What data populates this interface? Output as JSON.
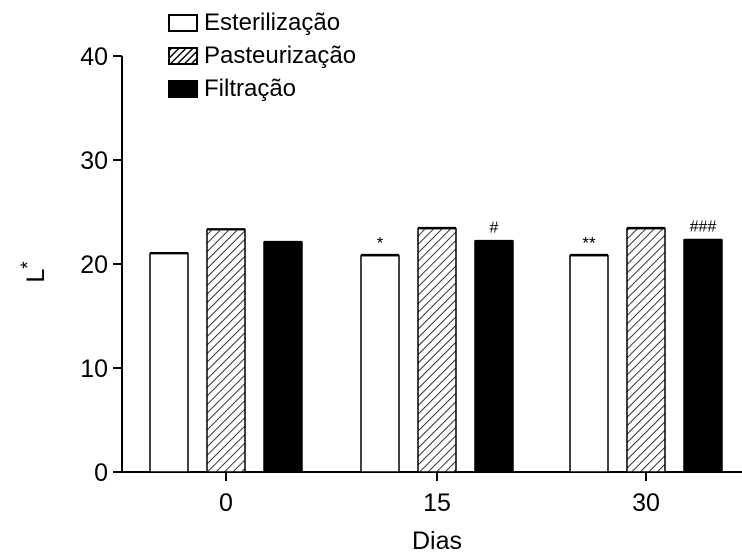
{
  "chart_data": {
    "type": "bar",
    "xlabel": "Dias",
    "ylabel": "L*",
    "categories": [
      "0",
      "15",
      "30"
    ],
    "ylim": [
      0,
      40
    ],
    "yticks": [
      "0",
      "10",
      "20",
      "30",
      "40"
    ],
    "series": [
      {
        "name": "Esterilização",
        "fill": "white",
        "values": [
          21.0,
          20.8,
          20.8
        ],
        "errors": [
          0.08,
          0.1,
          0.1
        ]
      },
      {
        "name": "Pasteurização",
        "fill": "hatch",
        "values": [
          23.3,
          23.4,
          23.4
        ],
        "errors": [
          0.08,
          0.1,
          0.1
        ]
      },
      {
        "name": "Filtração",
        "fill": "black",
        "values": [
          22.1,
          22.2,
          22.3
        ],
        "errors": [
          0.05,
          0.05,
          0.05
        ]
      }
    ],
    "annotations": [
      {
        "category": "15",
        "series": "Esterilização",
        "text": "*"
      },
      {
        "category": "15",
        "series": "Filtração",
        "text": "#"
      },
      {
        "category": "30",
        "series": "Esterilização",
        "text": "**"
      },
      {
        "category": "30",
        "series": "Filtração",
        "text": "###"
      }
    ],
    "legend": "top-left",
    "grid": false
  },
  "legend": {
    "items": [
      "Esterilização",
      "Pasteurização",
      "Filtração"
    ]
  }
}
